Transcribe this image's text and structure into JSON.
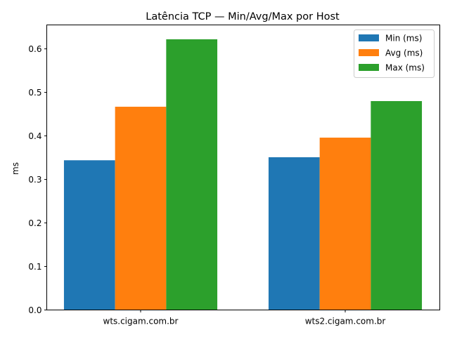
{
  "chart_data": {
    "type": "bar",
    "title": "Latência TCP — Min/Avg/Max por Host",
    "xlabel": "",
    "ylabel": "ms",
    "categories": [
      "wts.cigam.com.br",
      "wts2.cigam.com.br"
    ],
    "series": [
      {
        "name": "Min (ms)",
        "values": [
          0.344,
          0.351
        ],
        "color": "#1f77b4"
      },
      {
        "name": "Avg (ms)",
        "values": [
          0.467,
          0.396
        ],
        "color": "#ff7f0e"
      },
      {
        "name": "Max (ms)",
        "values": [
          0.622,
          0.48
        ],
        "color": "#2ca02c"
      }
    ],
    "ylim": [
      0,
      0.655
    ],
    "yticks": [
      "0.0",
      "0.1",
      "0.2",
      "0.3",
      "0.4",
      "0.5",
      "0.6"
    ],
    "legend_position": "top-right",
    "grid": false
  }
}
